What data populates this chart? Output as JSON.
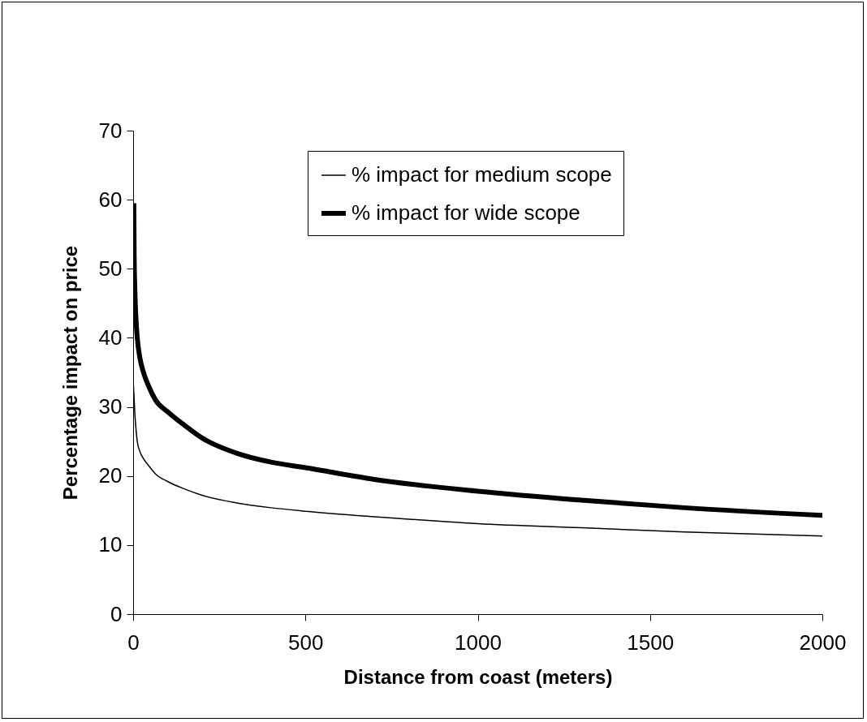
{
  "chart_data": {
    "type": "line",
    "xlabel": "Distance from coast (meters)",
    "ylabel": "Percentage impact on price",
    "xlim": [
      0,
      2000
    ],
    "xticks": [
      0,
      500,
      1000,
      1500,
      2000
    ],
    "ylim": [
      0,
      70
    ],
    "yticks": [
      0,
      10,
      20,
      30,
      40,
      50,
      60,
      70
    ],
    "grid": false,
    "legend": "top right",
    "series": [
      {
        "name": "% impact for medium scope",
        "color": "#000000",
        "x": [
          1,
          2,
          3,
          5,
          8,
          12,
          20,
          30,
          45,
          65,
          100,
          150,
          200,
          300,
          400,
          500,
          700,
          1000,
          1300,
          1600,
          2000
        ],
        "values": [
          33,
          32,
          31,
          29,
          27,
          25,
          23.5,
          22.5,
          21.5,
          20.3,
          19.2,
          18.1,
          17.2,
          16.1,
          15.4,
          14.9,
          14.1,
          13.1,
          12.5,
          11.9,
          11.3
        ]
      },
      {
        "name": "% impact for wide scope",
        "color": "#000000",
        "x": [
          2,
          3,
          5,
          8,
          12,
          20,
          30,
          45,
          65,
          100,
          150,
          200,
          300,
          400,
          500,
          700,
          1000,
          1300,
          1600,
          2000
        ],
        "values": [
          59.5,
          52,
          47,
          43,
          40,
          37,
          35,
          33,
          31,
          29.3,
          27.3,
          25.5,
          23.3,
          22,
          21.2,
          19.5,
          17.8,
          16.5,
          15.4,
          14.3
        ]
      }
    ]
  }
}
